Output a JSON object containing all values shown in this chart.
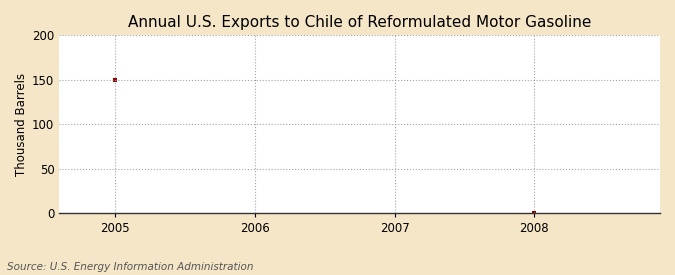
{
  "title": "Annual U.S. Exports to Chile of Reformulated Motor Gasoline",
  "ylabel": "Thousand Barrels",
  "source_text": "Source: U.S. Energy Information Administration",
  "x_data": [
    2005,
    2008
  ],
  "y_data": [
    150,
    0
  ],
  "xlim": [
    2004.6,
    2008.9
  ],
  "ylim": [
    0,
    200
  ],
  "yticks": [
    0,
    50,
    100,
    150,
    200
  ],
  "xticks": [
    2005,
    2006,
    2007,
    2008
  ],
  "marker_color": "#8b0000",
  "marker": "s",
  "markersize": 3.5,
  "grid_color": "#999999",
  "plot_bg_color": "#ffffff",
  "outer_bg_color": "#f5e6c8",
  "title_fontsize": 11,
  "label_fontsize": 8.5,
  "tick_fontsize": 8.5,
  "source_fontsize": 7.5
}
